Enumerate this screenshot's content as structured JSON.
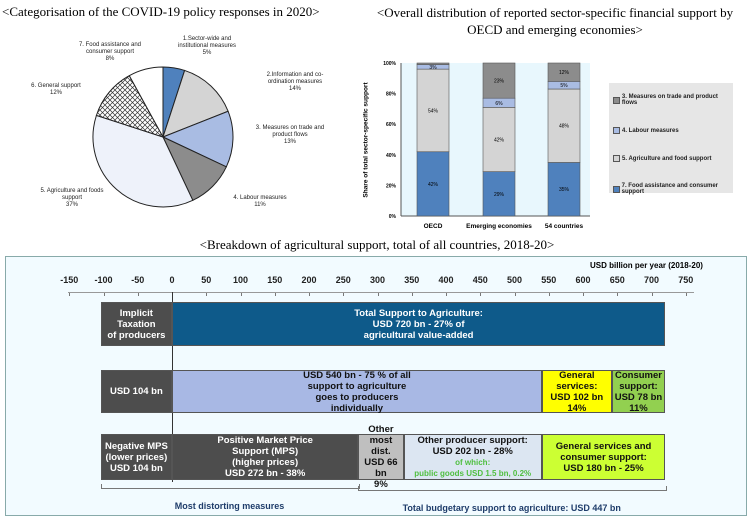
{
  "titles": {
    "pie": "<Categorisation of the COVID-19 policy responses in 2020>",
    "bars": "<Overall distribution of reported sector-specific financial support by OECD and emerging economies>",
    "bars_line1": "<Overall distribution of reported sector-specific financial support by",
    "bars_line2": "OECD and emerging economies>",
    "breakdown": "<Breakdown of agricultural support, total of all countries, 2018-20>"
  },
  "chart_data": [
    {
      "type": "pie",
      "title": "<Categorisation of the COVID-19 policy responses in 2020>",
      "slices": [
        {
          "label": "1.Sector-wide and institutional measures",
          "value": 5,
          "text": "5%",
          "color": "#4f81bd"
        },
        {
          "label": "2.Information and co-ordination measures",
          "value": 14,
          "text": "14%",
          "color": "#d4d4d4"
        },
        {
          "label": "3. Measures on trade and product flows",
          "value": 13,
          "text": "13%",
          "color": "#a9bce3"
        },
        {
          "label": "4. Labour measures",
          "value": 11,
          "text": "11%",
          "color": "#8c8c8c"
        },
        {
          "label": "5. Agriculture and foods support",
          "value": 37,
          "text": "37%",
          "color": "#eef2fa"
        },
        {
          "label": "6. General support",
          "value": 12,
          "text": "12%",
          "color": "crosshatch"
        },
        {
          "label": "7. Food assistance and consumer support",
          "value": 8,
          "text": "8%",
          "color": "#ffffff"
        }
      ]
    },
    {
      "type": "bar",
      "stacked": true,
      "ylabel": "Share of total sector-specific support",
      "ylim": [
        0,
        100
      ],
      "yticks": [
        "0%",
        "20%",
        "40%",
        "60%",
        "80%",
        "100%"
      ],
      "categories": [
        "OECD",
        "Emerging economies",
        "54 countries"
      ],
      "legend_position": "right",
      "series": [
        {
          "name": "7. Food assistance and consumer support",
          "color": "#4f81bd",
          "values": [
            42,
            29,
            35
          ],
          "labels": [
            "42%",
            "29%",
            "35%"
          ]
        },
        {
          "name": "5. Agriculture and food support",
          "color": "#d4d4d4",
          "values": [
            54,
            42,
            48
          ],
          "labels": [
            "54%",
            "42%",
            "48%"
          ]
        },
        {
          "name": "4. Labour measures",
          "color": "#a9bce3",
          "values": [
            3,
            6,
            5
          ],
          "labels": [
            "3%",
            "6%",
            "5%"
          ]
        },
        {
          "name": "3. Measures on trade and product flows",
          "color": "#8c8c8c",
          "values": [
            1,
            23,
            12
          ],
          "labels": [
            "",
            "23%",
            "12%"
          ]
        }
      ]
    },
    {
      "type": "bar",
      "subtype": "breakdown",
      "unit": "USD billion per year (2018-20)",
      "xlim": [
        -150,
        750
      ],
      "xticks": [
        "-150",
        "-100",
        "-50",
        "0",
        "50",
        "100",
        "150",
        "200",
        "250",
        "300",
        "350",
        "400",
        "450",
        "500",
        "550",
        "600",
        "650",
        "700",
        "750"
      ],
      "rows": [
        [
          {
            "from": -104,
            "to": 0,
            "color": "#4d4d4d",
            "text_color": "#ffffff",
            "lines": [
              "Implicit",
              "Taxation",
              "of producers"
            ]
          },
          {
            "from": 0,
            "to": 720,
            "color": "#0e5a8a",
            "text_color": "#ffffff",
            "lines": [
              "Total Support to Agriculture:",
              "USD 720 bn - 27% of",
              "agricultural value-added"
            ]
          }
        ],
        [
          {
            "from": -104,
            "to": 0,
            "color": "#4d4d4d",
            "text_color": "#ffffff",
            "lines": [
              "USD 104 bn"
            ]
          },
          {
            "from": 0,
            "to": 540,
            "color": "#a8b8e4",
            "text_color": "#111111",
            "lines": [
              "USD 540 bn - 75 % of all",
              "support to agriculture",
              "goes to producers",
              "individually"
            ]
          },
          {
            "from": 540,
            "to": 642,
            "color": "#ffff00",
            "text_color": "#111111",
            "lines": [
              "General",
              "services:",
              "USD 102 bn",
              "14%"
            ]
          },
          {
            "from": 642,
            "to": 720,
            "color": "#92d050",
            "text_color": "#111111",
            "lines": [
              "Consumer",
              "support:",
              "USD 78 bn",
              "11%"
            ]
          }
        ],
        [
          {
            "from": -104,
            "to": 0,
            "color": "#4d4d4d",
            "text_color": "#ffffff",
            "lines": [
              "Negative MPS",
              "(lower prices)",
              "USD 104 bn"
            ]
          },
          {
            "from": 0,
            "to": 272,
            "color": "#4d4d4d",
            "text_color": "#ffffff",
            "lines": [
              "Positive Market Price",
              "Support (MPS)",
              "(higher prices)",
              "USD 272 bn - 38%"
            ]
          },
          {
            "from": 272,
            "to": 338,
            "color": "#bfbfbf",
            "text_color": "#111111",
            "lines": [
              "Other",
              "most dist.",
              "USD 66 bn",
              "9%"
            ]
          },
          {
            "from": 338,
            "to": 540,
            "color": "#dce6f2",
            "text_color": "#111111",
            "lines": [
              "Other producer support:",
              "USD 202 bn - 28%"
            ],
            "note": [
              "of which:",
              "public goods USD 1.5 bn, 0.2%"
            ],
            "note_color": "#4fbf3f"
          },
          {
            "from": 540,
            "to": 720,
            "color": "#ccff33",
            "text_color": "#111111",
            "lines": [
              "General services and",
              "consumer support:",
              "USD 180 bn - 25%"
            ]
          }
        ]
      ],
      "brackets": [
        {
          "from": -104,
          "to": 272,
          "label": "Most distorting measures"
        },
        {
          "from": 272,
          "to": 720,
          "label": "Total budgetary support to agriculture: USD 447 bn"
        }
      ]
    }
  ]
}
